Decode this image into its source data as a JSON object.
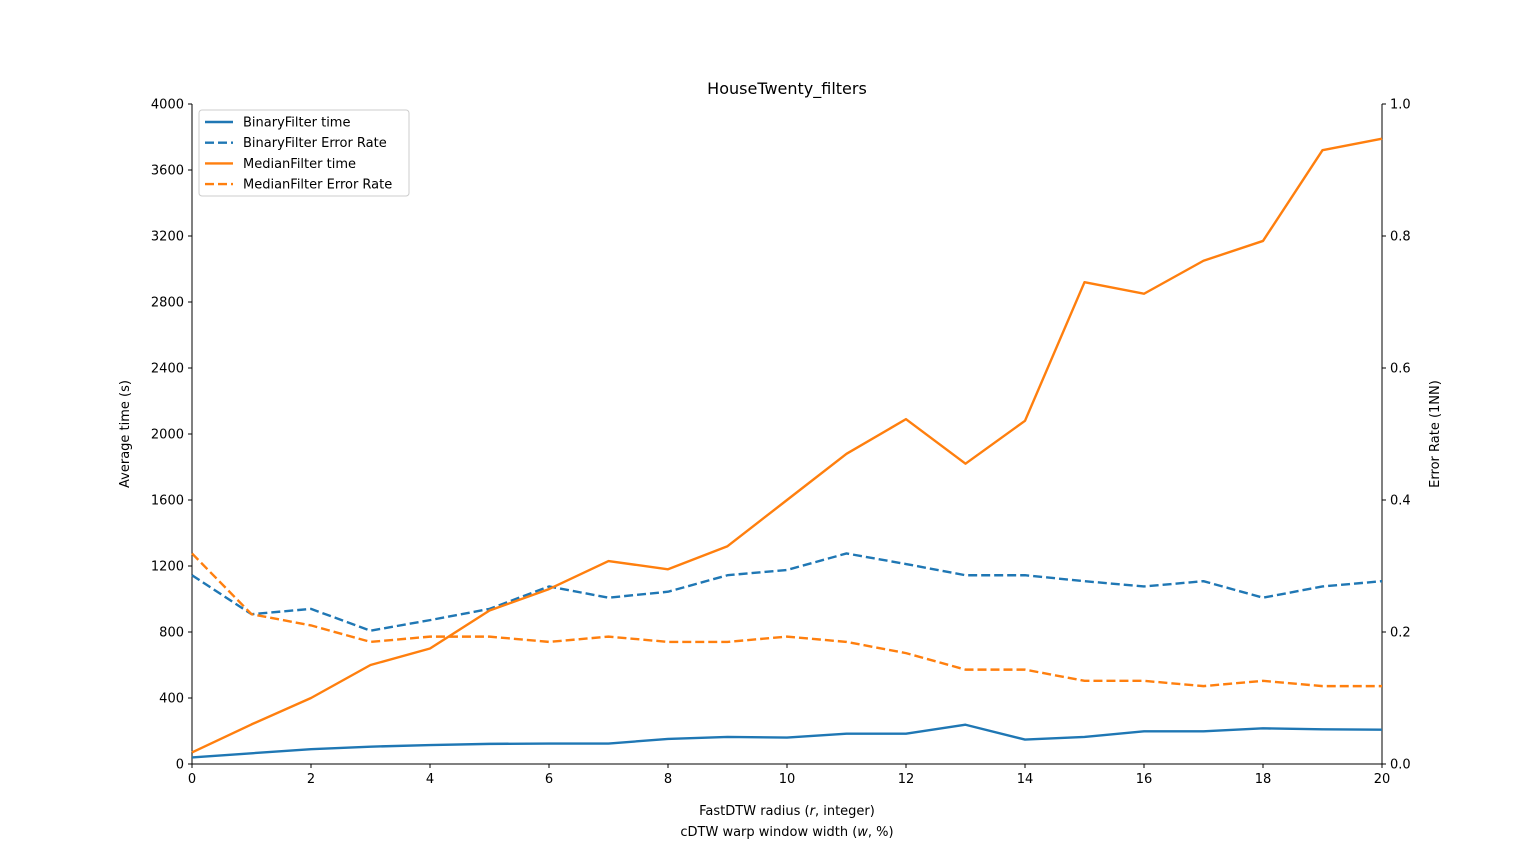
{
  "chart_data": {
    "type": "line",
    "title": "HouseTwenty_filters",
    "xlabel": "FastDTW radius (r, integer)",
    "xlabel2": "cDTW warp window width (w, %)",
    "xlabel_italic": "r",
    "xlabel2_italic": "w",
    "ylabel": "Average time (s)",
    "ylabel_right": "Error Rate (1NN)",
    "xlim": [
      0,
      20
    ],
    "ylim": [
      0,
      4000
    ],
    "ylim_right": [
      0,
      1.0
    ],
    "x_ticks": [
      "0",
      "2",
      "4",
      "6",
      "8",
      "10",
      "12",
      "14",
      "16",
      "18",
      "20"
    ],
    "y_ticks": [
      "0",
      "400",
      "800",
      "1200",
      "1600",
      "2000",
      "2400",
      "2800",
      "3200",
      "3600",
      "4000"
    ],
    "y_ticks_right": [
      "0.0",
      "0.2",
      "0.4",
      "0.6",
      "0.8",
      "1.0"
    ],
    "grid": false,
    "legend_position": "top-left",
    "x": [
      0,
      1,
      2,
      3,
      4,
      5,
      6,
      7,
      8,
      9,
      10,
      11,
      12,
      13,
      14,
      15,
      16,
      17,
      18,
      19,
      20
    ],
    "series": [
      {
        "name": "BinaryFilter time",
        "axis": "left",
        "style": "solid",
        "color": "#1f77b4",
        "values": [
          40,
          65,
          90,
          105,
          115,
          122,
          124,
          124,
          152,
          164,
          160,
          184,
          184,
          238,
          148,
          164,
          198,
          198,
          216,
          210,
          208
        ]
      },
      {
        "name": "BinaryFilter Error Rate",
        "axis": "right",
        "style": "dashed",
        "color": "#1f77b4",
        "values": [
          0.286,
          0.227,
          0.235,
          0.202,
          0.218,
          0.235,
          0.269,
          0.252,
          0.261,
          0.286,
          0.294,
          0.319,
          0.303,
          0.286,
          0.286,
          0.277,
          0.269,
          0.277,
          0.252,
          0.269,
          0.277
        ]
      },
      {
        "name": "MedianFilter time",
        "axis": "left",
        "style": "solid",
        "color": "#ff7f0e",
        "values": [
          70,
          240,
          400,
          600,
          700,
          930,
          1060,
          1230,
          1180,
          1320,
          1600,
          1880,
          2090,
          1820,
          2080,
          2920,
          2850,
          3050,
          3170,
          3720,
          3790
        ]
      },
      {
        "name": "MedianFilter Error Rate",
        "axis": "right",
        "style": "dashed",
        "color": "#ff7f0e",
        "values": [
          0.319,
          0.227,
          0.21,
          0.185,
          0.193,
          0.193,
          0.185,
          0.193,
          0.185,
          0.185,
          0.193,
          0.185,
          0.168,
          0.143,
          0.143,
          0.126,
          0.126,
          0.118,
          0.126,
          0.118,
          0.118
        ]
      }
    ]
  }
}
